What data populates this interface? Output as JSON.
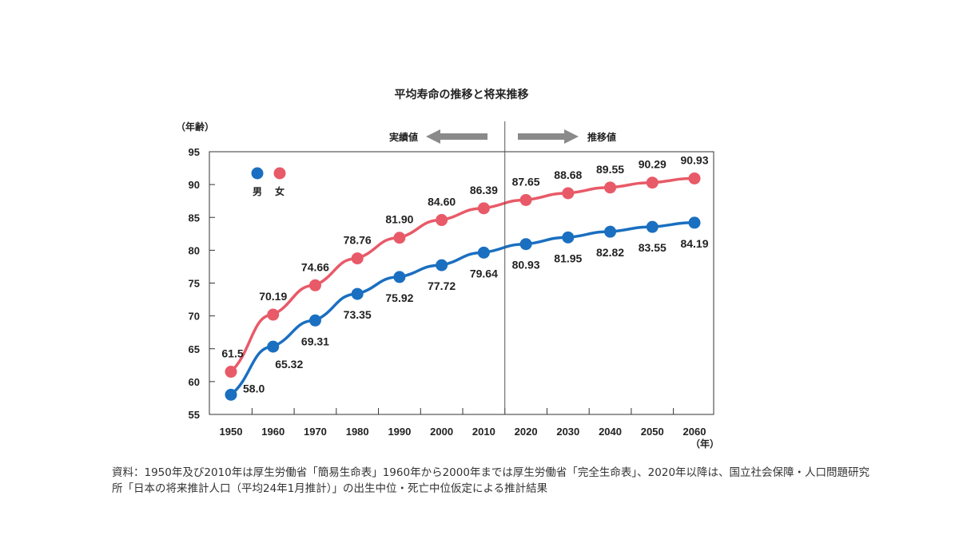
{
  "chart_data": {
    "type": "line",
    "title": "平均寿命の推移と将来推移",
    "ylabel": "（年齢）",
    "xlabel": "（年）",
    "ylim": [
      55,
      95
    ],
    "yticks": [
      55,
      60,
      65,
      70,
      75,
      80,
      85,
      90,
      95
    ],
    "categories": [
      "1950",
      "1960",
      "1970",
      "1980",
      "1990",
      "2000",
      "2010",
      "2020",
      "2030",
      "2040",
      "2050",
      "2060"
    ],
    "series": [
      {
        "name": "男",
        "color": "#1a6fc0",
        "values": [
          58.0,
          65.32,
          69.31,
          73.35,
          75.92,
          77.72,
          79.64,
          80.93,
          81.95,
          82.82,
          83.55,
          84.19
        ],
        "labels": [
          "58.0",
          "65.32",
          "69.31",
          "73.35",
          "75.92",
          "77.72",
          "79.64",
          "80.93",
          "81.95",
          "82.82",
          "83.55",
          "84.19"
        ]
      },
      {
        "name": "女",
        "color": "#e85a68",
        "values": [
          61.5,
          70.19,
          74.66,
          78.76,
          81.9,
          84.6,
          86.39,
          87.65,
          88.68,
          89.55,
          90.29,
          90.93
        ],
        "labels": [
          "61.5",
          "70.19",
          "74.66",
          "78.76",
          "81.90",
          "84.60",
          "86.39",
          "87.65",
          "88.68",
          "89.55",
          "90.29",
          "90.93"
        ]
      }
    ],
    "annotations": {
      "actual": "実績値",
      "projection": "推移値",
      "divider_after": "2010"
    },
    "legend_placement": "top-left",
    "grid": false
  },
  "source_note": "資料：1950年及び2010年は厚生労働省「簡易生命表」1960年から2000年までは厚生労働省「完全生命表」、2020年以降は、国立社会保障・人口問題研究所「日本の将来推計人口（平均24年1月推計）」の出生中位・死亡中位仮定による推計結果"
}
